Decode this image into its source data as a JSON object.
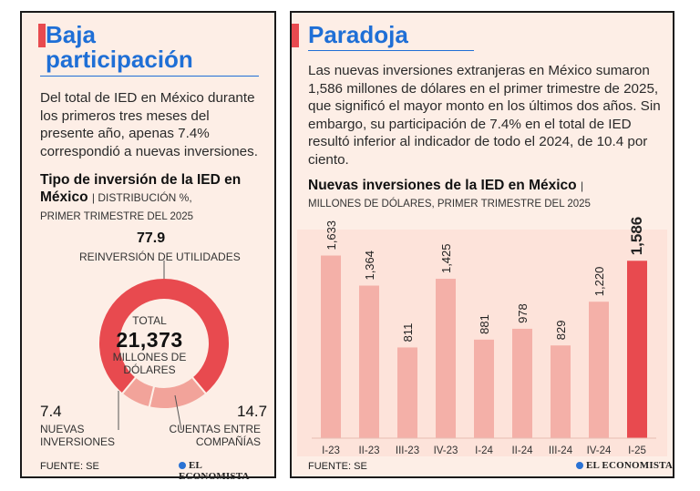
{
  "left": {
    "heading_line1": "Baja",
    "heading_line2": "participación",
    "intro": "Del total de IED en México durante los primeros tres meses del presente año, apenas 7.4% correspondió a nuevas inversiones.",
    "chart_title": "Tipo de inversión de la IED en México",
    "chart_subtitle_a": "| DISTRIBUCIÓN %,",
    "chart_subtitle_b": "PRIMER TRIMESTRE DEL 2025",
    "donut_center": {
      "label_top": "TOTAL",
      "value": "21,373",
      "label_bottom1": "MILLONES DE",
      "label_bottom2": "DÓLARES"
    },
    "source": "FUENTE: SE",
    "logo": "EL ECONOMISTA"
  },
  "right": {
    "heading": "Paradoja",
    "intro": "Las nuevas inversiones extranjeras en México sumaron 1,586 millones de dólares en el primer trimestre de 2025, que significó el mayor monto en los últimos dos años. Sin embargo, su participación de 7.4% en el total de IED resultó inferior al indicador de todo el 2024, de 10.4 por ciento.",
    "chart_title": "Nuevas inversiones de la IED en México",
    "chart_title_sep": "|",
    "chart_subtitle": "MILLONES DE DÓLARES, PRIMER TRIMESTRE DEL 2025",
    "source": "FUENTE: SE",
    "logo": "EL ECONOMISTA"
  },
  "chart_data": [
    {
      "type": "pie",
      "title": "Tipo de inversión de la IED en México",
      "categories": [
        "REINVERSIÓN DE UTILIDADES",
        "CUENTAS ENTRE COMPAÑÍAS",
        "NUEVAS INVERSIONES"
      ],
      "values": [
        77.9,
        14.7,
        7.4
      ],
      "value_labels": [
        "77.9",
        "14.7",
        "7.4"
      ],
      "colors": [
        "#e84a4f",
        "#f2a39a",
        "#f2a39a"
      ]
    },
    {
      "type": "bar",
      "title": "Nuevas inversiones de la IED en México",
      "categories": [
        "I-23",
        "II-23",
        "III-23",
        "IV-23",
        "I-24",
        "II-24",
        "III-24",
        "IV-24",
        "I-25"
      ],
      "values": [
        1633,
        1364,
        811,
        1425,
        881,
        978,
        829,
        1220,
        1586
      ],
      "value_labels": [
        "1,633",
        "1,364",
        "811",
        "1,425",
        "881",
        "978",
        "829",
        "1,220",
        "1,586"
      ],
      "ylim": [
        0,
        1800
      ],
      "highlight_index": 8,
      "colors": {
        "bar": "#f4b0a8",
        "highlight": "#e84a4f"
      }
    }
  ]
}
